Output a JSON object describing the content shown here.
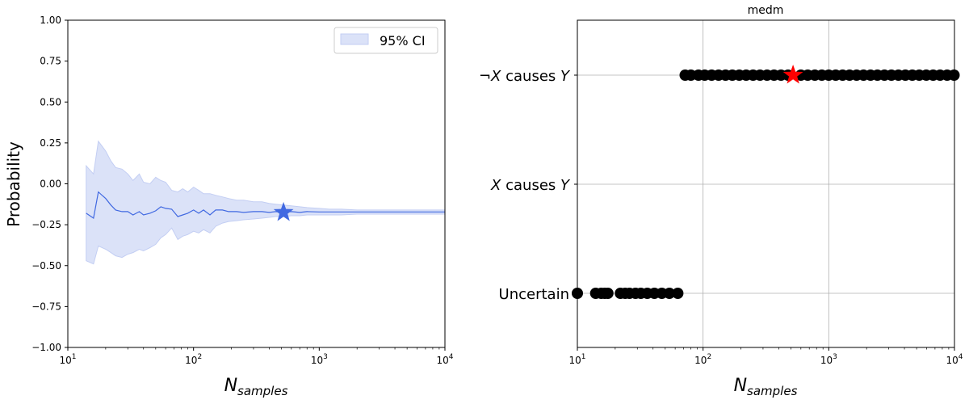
{
  "colors": {
    "line": "#4169e1",
    "band": "#dbe2f8",
    "band_edge": "#c3cef3",
    "star_left": "#4169e1",
    "dot": "#000000",
    "star_right": "#ff0000",
    "grid": "#b0b0b0"
  },
  "chart_data": [
    {
      "type": "line",
      "title": "",
      "xlabel": "N",
      "xlabel_sub": "samples",
      "ylabel": "Probability",
      "xscale": "log",
      "xlim": [
        10,
        10000
      ],
      "ylim": [
        -1.0,
        1.0
      ],
      "xticks": [
        {
          "value": 10,
          "base": "10",
          "exp": "1"
        },
        {
          "value": 100,
          "base": "10",
          "exp": "2"
        },
        {
          "value": 1000,
          "base": "10",
          "exp": "3"
        },
        {
          "value": 10000,
          "base": "10",
          "exp": "4"
        }
      ],
      "yticks": [
        {
          "value": 1.0,
          "label": "1.00"
        },
        {
          "value": 0.75,
          "label": "0.75"
        },
        {
          "value": 0.5,
          "label": "0.50"
        },
        {
          "value": 0.25,
          "label": "0.25"
        },
        {
          "value": 0.0,
          "label": "0.00"
        },
        {
          "value": -0.25,
          "label": "−0.25"
        },
        {
          "value": -0.5,
          "label": "−0.50"
        },
        {
          "value": -0.75,
          "label": "−0.75"
        },
        {
          "value": -1.0,
          "label": "−1.00"
        }
      ],
      "legend": {
        "label": "95% CI",
        "position": "top-right"
      },
      "series": [
        {
          "name": "mean",
          "x": [
            14,
            16,
            17.5,
            20,
            22,
            24,
            27,
            30,
            33,
            37,
            40,
            45,
            50,
            55,
            60,
            67,
            75,
            82,
            90,
            100,
            110,
            120,
            135,
            150,
            170,
            190,
            220,
            250,
            300,
            350,
            400,
            450,
            520,
            600,
            700,
            800,
            1000,
            1200,
            1500,
            2000,
            3000,
            5000,
            7000,
            10000
          ],
          "y": [
            -0.18,
            -0.21,
            -0.05,
            -0.09,
            -0.13,
            -0.16,
            -0.17,
            -0.17,
            -0.19,
            -0.17,
            -0.19,
            -0.18,
            -0.165,
            -0.14,
            -0.15,
            -0.155,
            -0.2,
            -0.19,
            -0.18,
            -0.16,
            -0.18,
            -0.16,
            -0.19,
            -0.16,
            -0.16,
            -0.17,
            -0.17,
            -0.175,
            -0.17,
            -0.17,
            -0.175,
            -0.17,
            -0.175,
            -0.17,
            -0.175,
            -0.17,
            -0.172,
            -0.172,
            -0.172,
            -0.172,
            -0.172,
            -0.172,
            -0.172,
            -0.172
          ]
        },
        {
          "name": "95% CI",
          "x": [
            14,
            16,
            17.5,
            20,
            22,
            24,
            27,
            30,
            33,
            37,
            40,
            45,
            50,
            55,
            60,
            67,
            75,
            82,
            90,
            100,
            110,
            120,
            135,
            150,
            170,
            190,
            220,
            250,
            300,
            350,
            400,
            450,
            520,
            600,
            700,
            800,
            1000,
            1200,
            1500,
            2000,
            3000,
            5000,
            7000,
            10000
          ],
          "upper": [
            0.11,
            0.06,
            0.26,
            0.2,
            0.14,
            0.1,
            0.09,
            0.06,
            0.02,
            0.06,
            0.01,
            0.0,
            0.04,
            0.02,
            0.01,
            -0.04,
            -0.05,
            -0.03,
            -0.05,
            -0.02,
            -0.04,
            -0.06,
            -0.06,
            -0.07,
            -0.08,
            -0.09,
            -0.1,
            -0.1,
            -0.11,
            -0.11,
            -0.12,
            -0.125,
            -0.13,
            -0.135,
            -0.14,
            -0.145,
            -0.15,
            -0.155,
            -0.155,
            -0.16,
            -0.16,
            -0.16,
            -0.16,
            -0.16
          ],
          "lower": [
            -0.47,
            -0.49,
            -0.38,
            -0.4,
            -0.42,
            -0.44,
            -0.45,
            -0.43,
            -0.42,
            -0.4,
            -0.41,
            -0.39,
            -0.37,
            -0.33,
            -0.31,
            -0.27,
            -0.34,
            -0.32,
            -0.31,
            -0.29,
            -0.3,
            -0.28,
            -0.3,
            -0.26,
            -0.24,
            -0.23,
            -0.225,
            -0.22,
            -0.215,
            -0.21,
            -0.205,
            -0.2,
            -0.2,
            -0.195,
            -0.195,
            -0.19,
            -0.19,
            -0.19,
            -0.19,
            -0.185,
            -0.185,
            -0.185,
            -0.185,
            -0.185
          ]
        }
      ],
      "marker": {
        "x": 520,
        "y": -0.175,
        "shape": "star"
      }
    },
    {
      "type": "scatter",
      "title": "medm",
      "xlabel": "N",
      "xlabel_sub": "samples",
      "ylabel": "",
      "xscale": "log",
      "xlim": [
        10,
        10000
      ],
      "xticks": [
        {
          "value": 10,
          "base": "10",
          "exp": "1"
        },
        {
          "value": 100,
          "base": "10",
          "exp": "2"
        },
        {
          "value": 1000,
          "base": "10",
          "exp": "3"
        },
        {
          "value": 10000,
          "base": "10",
          "exp": "4"
        }
      ],
      "categories": [
        {
          "pre": "¬",
          "a": "X",
          "mid": " causes ",
          "b": "Y"
        },
        {
          "pre": "",
          "a": "X",
          "mid": " causes ",
          "b": "Y"
        },
        {
          "pre": "Uncertain",
          "a": "",
          "mid": "",
          "b": ""
        }
      ],
      "points": {
        "Uncertain": [
          10,
          14,
          15.5,
          16.5,
          17.5,
          22,
          24,
          26,
          29,
          32,
          36,
          41,
          47,
          54,
          63
        ],
        "not_X_causes_Y": [
          72,
          80,
          92,
          103,
          117,
          133,
          151,
          171,
          194,
          220,
          250,
          284,
          323,
          367,
          417,
          474,
          600,
          680,
          775,
          880,
          1000,
          1135,
          1290,
          1465,
          1665,
          1890,
          2150,
          2440,
          2775,
          3150,
          3580,
          4070,
          4620,
          5250,
          5960,
          6770,
          7690,
          8740,
          9930
        ],
        "X_causes_Y": []
      },
      "marker": {
        "x": 520,
        "category": "not_X_causes_Y",
        "shape": "star"
      }
    }
  ]
}
